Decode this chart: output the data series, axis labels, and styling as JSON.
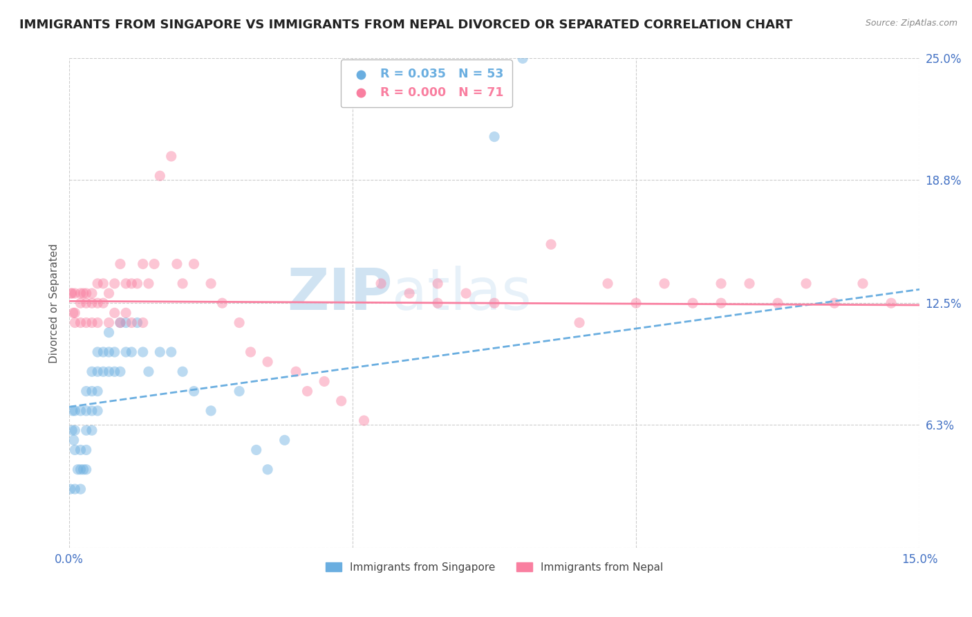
{
  "title": "IMMIGRANTS FROM SINGAPORE VS IMMIGRANTS FROM NEPAL DIVORCED OR SEPARATED CORRELATION CHART",
  "source": "Source: ZipAtlas.com",
  "ylabel": "Divorced or Separated",
  "xlim": [
    0.0,
    0.15
  ],
  "ylim": [
    0.0,
    0.25
  ],
  "yticks": [
    0.0,
    0.063,
    0.125,
    0.188,
    0.25
  ],
  "ytick_labels": [
    "",
    "6.3%",
    "12.5%",
    "18.8%",
    "25.0%"
  ],
  "xtick_labels": [
    "0.0%",
    "15.0%"
  ],
  "watermark_zip": "ZIP",
  "watermark_atlas": "atlas",
  "background_color": "#ffffff",
  "grid_color": "#cccccc",
  "title_fontsize": 13,
  "axis_label_fontsize": 11,
  "tick_fontsize": 12,
  "scatter_size": 120,
  "scatter_alpha": 0.45,
  "line_width": 2.0,
  "series": [
    {
      "label": "Immigrants from Singapore",
      "R": 0.035,
      "N": 53,
      "color": "#6aaee0",
      "trendline_style": "--",
      "trendline_start_y": 0.072,
      "trendline_end_y": 0.132,
      "x": [
        0.0002,
        0.0005,
        0.0006,
        0.0008,
        0.001,
        0.001,
        0.001,
        0.001,
        0.0015,
        0.002,
        0.002,
        0.002,
        0.002,
        0.0025,
        0.003,
        0.003,
        0.003,
        0.003,
        0.003,
        0.004,
        0.004,
        0.004,
        0.004,
        0.005,
        0.005,
        0.005,
        0.005,
        0.006,
        0.006,
        0.007,
        0.007,
        0.007,
        0.008,
        0.008,
        0.009,
        0.009,
        0.01,
        0.01,
        0.011,
        0.012,
        0.013,
        0.014,
        0.016,
        0.018,
        0.02,
        0.022,
        0.025,
        0.03,
        0.033,
        0.035,
        0.038,
        0.075,
        0.08
      ],
      "y": [
        0.03,
        0.06,
        0.07,
        0.055,
        0.03,
        0.05,
        0.06,
        0.07,
        0.04,
        0.03,
        0.04,
        0.05,
        0.07,
        0.04,
        0.04,
        0.05,
        0.06,
        0.07,
        0.08,
        0.06,
        0.07,
        0.08,
        0.09,
        0.07,
        0.08,
        0.09,
        0.1,
        0.09,
        0.1,
        0.09,
        0.1,
        0.11,
        0.09,
        0.1,
        0.09,
        0.115,
        0.1,
        0.115,
        0.1,
        0.115,
        0.1,
        0.09,
        0.1,
        0.1,
        0.09,
        0.08,
        0.07,
        0.08,
        0.05,
        0.04,
        0.055,
        0.21,
        0.25
      ]
    },
    {
      "label": "Immigrants from Nepal",
      "R": 0.0,
      "N": 71,
      "color": "#f97fa0",
      "trendline_style": "-",
      "trendline_start_y": 0.126,
      "trendline_end_y": 0.124,
      "x": [
        0.0003,
        0.0005,
        0.0007,
        0.001,
        0.001,
        0.001,
        0.002,
        0.002,
        0.002,
        0.0025,
        0.003,
        0.003,
        0.003,
        0.004,
        0.004,
        0.004,
        0.005,
        0.005,
        0.005,
        0.006,
        0.006,
        0.007,
        0.007,
        0.008,
        0.008,
        0.009,
        0.009,
        0.01,
        0.01,
        0.011,
        0.011,
        0.012,
        0.013,
        0.013,
        0.014,
        0.015,
        0.016,
        0.018,
        0.019,
        0.02,
        0.022,
        0.025,
        0.027,
        0.03,
        0.032,
        0.035,
        0.04,
        0.042,
        0.045,
        0.048,
        0.052,
        0.055,
        0.06,
        0.065,
        0.065,
        0.07,
        0.075,
        0.085,
        0.09,
        0.095,
        0.1,
        0.105,
        0.11,
        0.115,
        0.115,
        0.12,
        0.125,
        0.13,
        0.135,
        0.14,
        0.145
      ],
      "y": [
        0.13,
        0.13,
        0.12,
        0.13,
        0.12,
        0.115,
        0.13,
        0.125,
        0.115,
        0.13,
        0.13,
        0.125,
        0.115,
        0.13,
        0.125,
        0.115,
        0.135,
        0.125,
        0.115,
        0.135,
        0.125,
        0.13,
        0.115,
        0.135,
        0.12,
        0.145,
        0.115,
        0.135,
        0.12,
        0.135,
        0.115,
        0.135,
        0.145,
        0.115,
        0.135,
        0.145,
        0.19,
        0.2,
        0.145,
        0.135,
        0.145,
        0.135,
        0.125,
        0.115,
        0.1,
        0.095,
        0.09,
        0.08,
        0.085,
        0.075,
        0.065,
        0.135,
        0.13,
        0.135,
        0.125,
        0.13,
        0.125,
        0.155,
        0.115,
        0.135,
        0.125,
        0.135,
        0.125,
        0.135,
        0.125,
        0.135,
        0.125,
        0.135,
        0.125,
        0.135,
        0.125
      ]
    }
  ]
}
